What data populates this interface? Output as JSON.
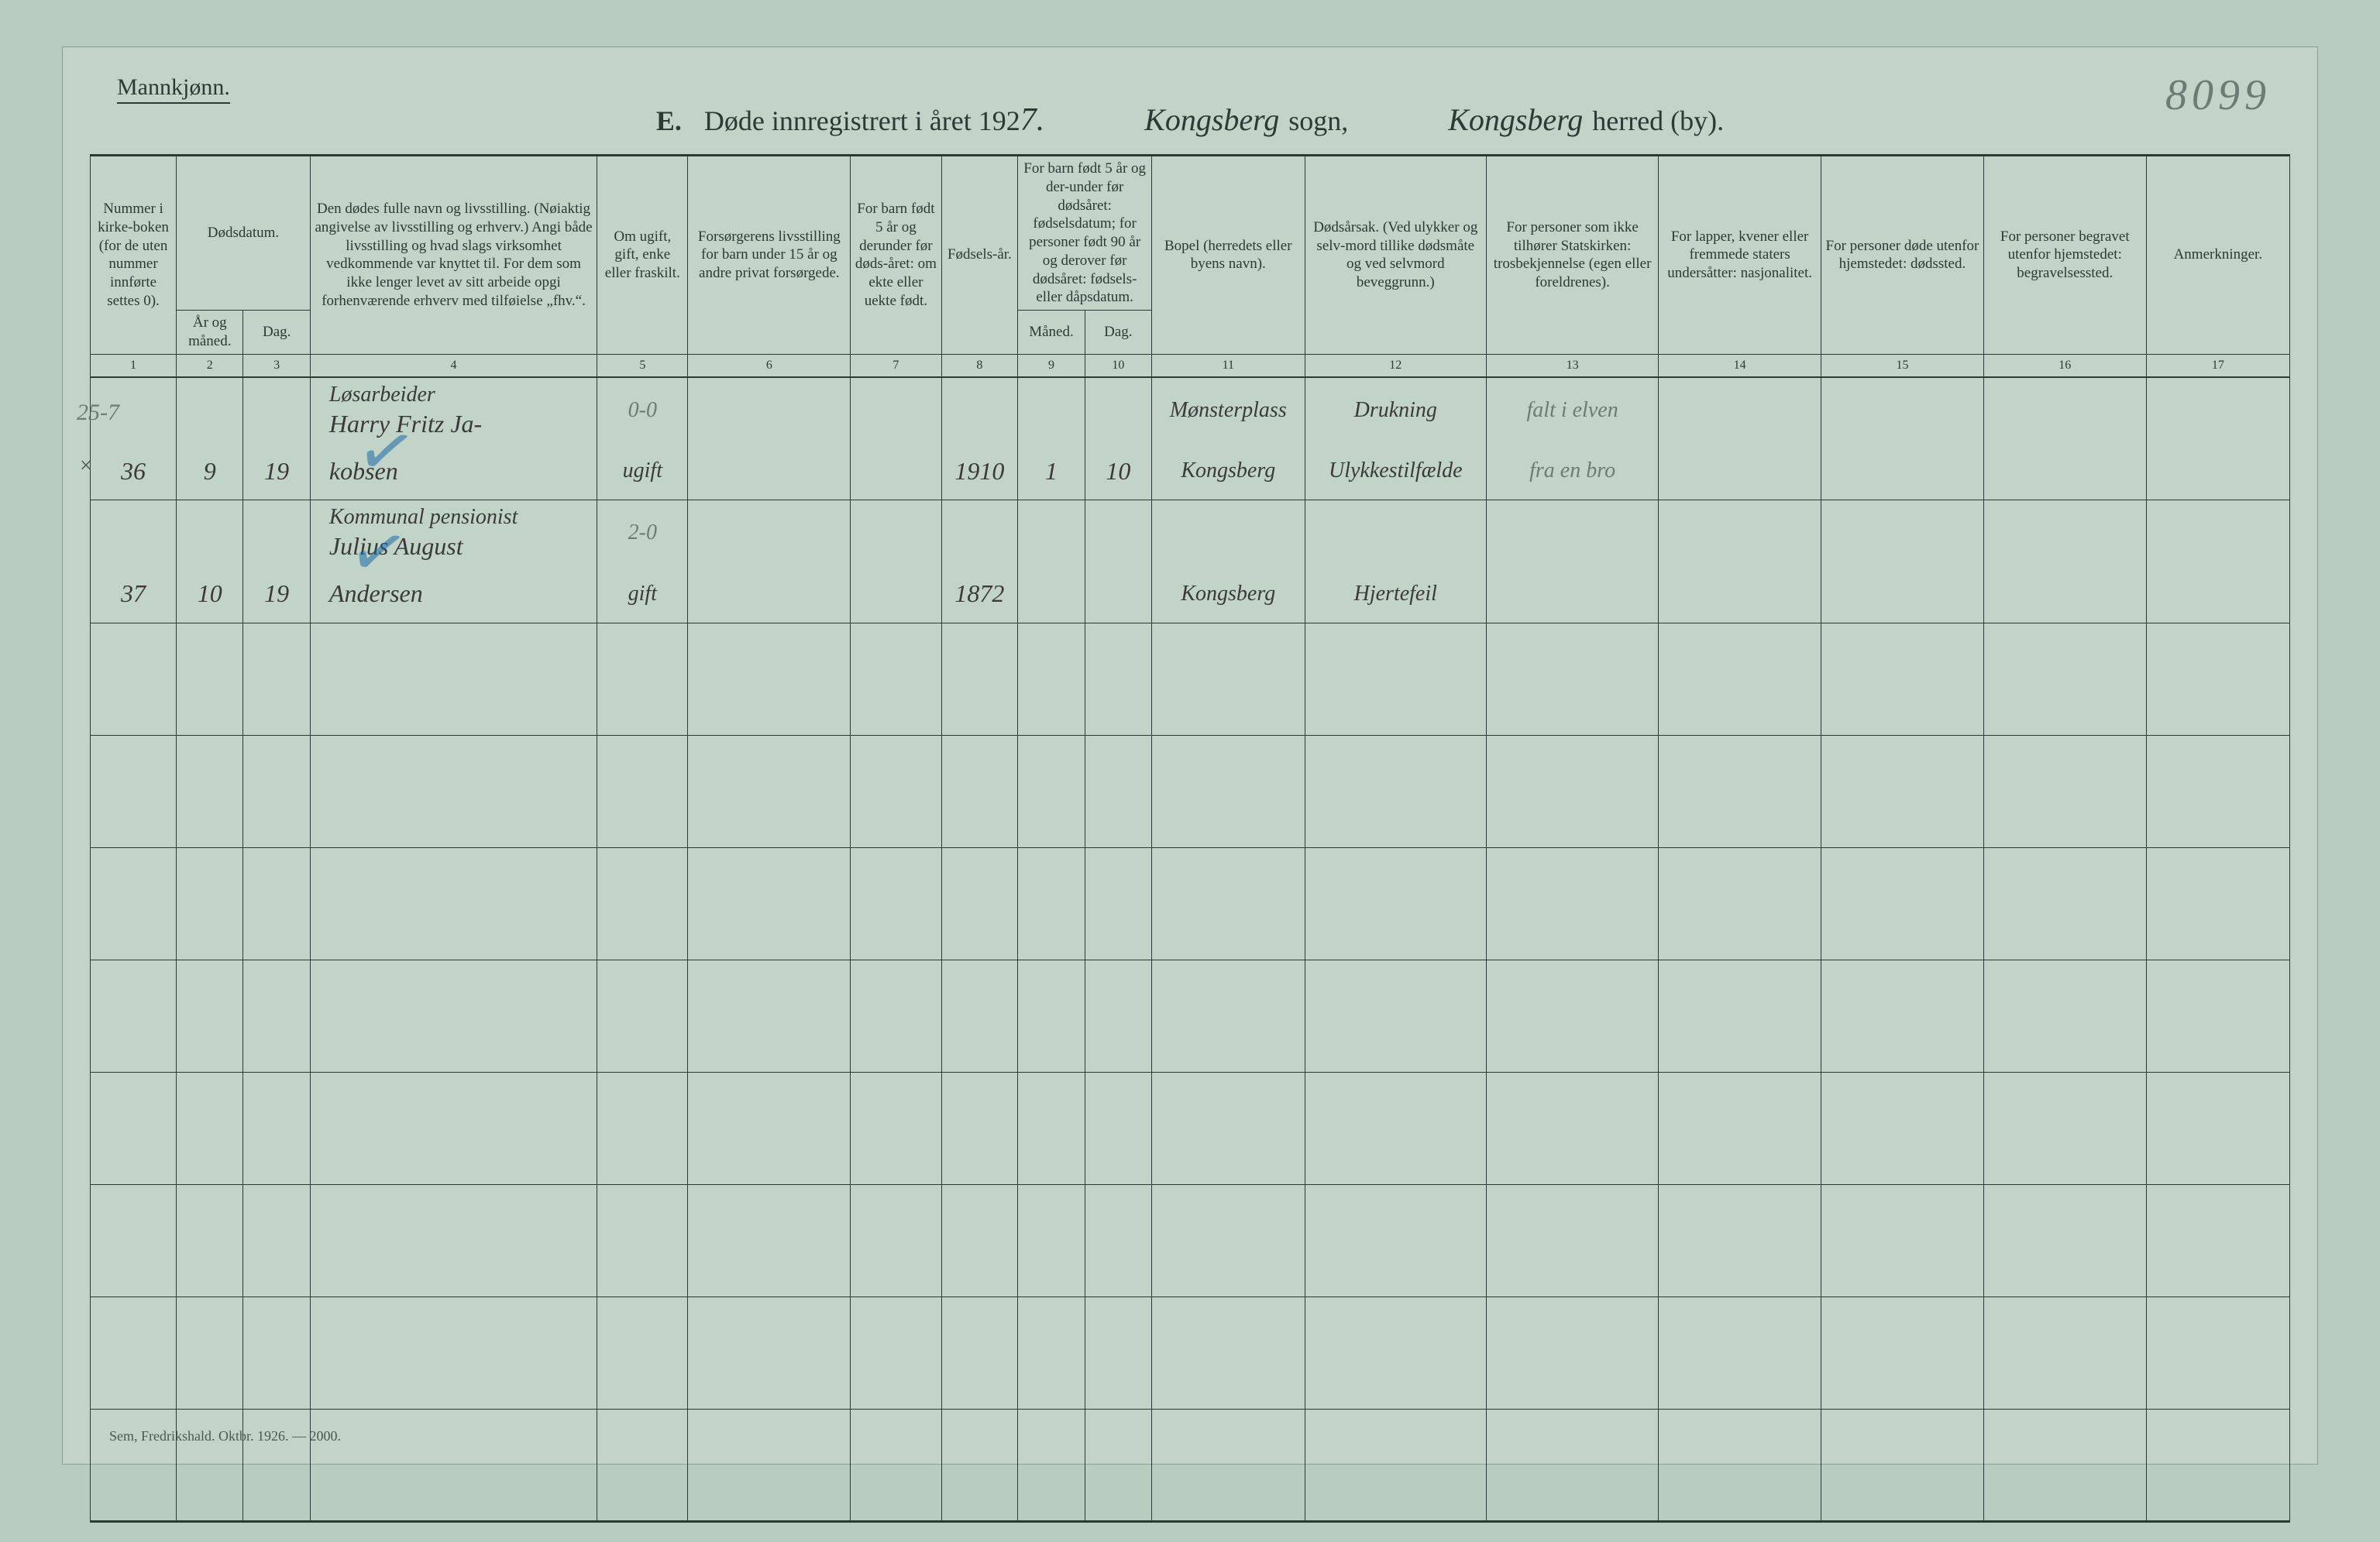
{
  "page_background": "#b8ccbf",
  "paper_background": "#c2d4c8",
  "ink_color": "#2a3a35",
  "handwriting_color": "#3a3a3a",
  "blue_pencil_color": "#1a6aa8",
  "faint_pencil_color": "#6b7c75",
  "gender_label": "Mannkjønn.",
  "title_letter": "E.",
  "title_prefix": "Døde innregistrert i året 192",
  "title_year_hand": "7.",
  "sogn_hand": "Kongsberg",
  "sogn_label": "sogn,",
  "herred_hand": "Kongsberg",
  "herred_label": "herred (by).",
  "page_number_hand": "8099",
  "headers": {
    "c1": "Nummer i kirke-boken (for de uten nummer innførte settes 0).",
    "c2_3_group": "Dødsdatum.",
    "c2": "År og måned.",
    "c3": "Dag.",
    "c4": "Den dødes fulle navn og livsstilling. (Nøiaktig angivelse av livsstilling og erhverv.) Angi både livsstilling og hvad slags virksomhet vedkommende var knyttet til. For dem som ikke lenger levet av sitt arbeide opgi forhenværende erhverv med tilføielse „fhv.“.",
    "c5": "Om ugift, gift, enke eller fraskilt.",
    "c6": "Forsørgerens livsstilling for barn under 15 år og andre privat forsørgede.",
    "c7": "For barn født 5 år og derunder før døds-året: om ekte eller uekte født.",
    "c8": "Fødsels-år.",
    "c9_10_group": "For barn født 5 år og der-under før dødsåret: fødselsdatum; for personer født 90 år og derover før dødsåret: fødsels- eller dåpsdatum.",
    "c9": "Måned.",
    "c10": "Dag.",
    "c11": "Bopel (herredets eller byens navn).",
    "c12": "Dødsårsak. (Ved ulykker og selv-mord tillike dødsmåte og ved selvmord beveggrunn.)",
    "c13": "For personer som ikke tilhører Statskirken: trosbekjennelse (egen eller foreldrenes).",
    "c14": "For lapper, kvener eller fremmede staters undersåtter: nasjonalitet.",
    "c15": "For personer døde utenfor hjemstedet: dødssted.",
    "c16": "For personer begravet utenfor hjemstedet: begravelsessted.",
    "c17": "Anmerkninger."
  },
  "colnums": [
    "1",
    "2",
    "3",
    "4",
    "5",
    "6",
    "7",
    "8",
    "9",
    "10",
    "11",
    "12",
    "13",
    "14",
    "15",
    "16",
    "17"
  ],
  "rows": [
    {
      "num": "36",
      "year_month": "9",
      "day": "19",
      "name_line1": "Løsarbeider",
      "name_line2": "Harry Fritz Ja-",
      "name_line3": "kobsen",
      "code": "0-0",
      "marital": "ugift",
      "provider": "",
      "legit": "",
      "birth_year": "1910",
      "birth_month": "1",
      "birth_day": "10",
      "residence_line1": "Mønsterplass",
      "residence_line2": "Kongsberg",
      "cause_line1": "Drukning",
      "cause_line2": "Ulykkestilfælde",
      "col13_line1": "falt i elven",
      "col13_line2": "fra en bro"
    },
    {
      "num": "37",
      "year_month": "10",
      "day": "19",
      "name_line1": "Kommunal pensionist",
      "name_line2": "Julius August",
      "name_line3": "Andersen",
      "code": "2-0",
      "marital": "gift",
      "provider": "",
      "legit": "",
      "birth_year": "1872",
      "birth_month": "",
      "birth_day": "",
      "residence_line1": "",
      "residence_line2": "Kongsberg",
      "cause_line1": "",
      "cause_line2": "Hjertefeil",
      "col13_line1": "",
      "col13_line2": ""
    }
  ],
  "margin_note": "25-7",
  "margin_x": "×",
  "empty_row_count": 8,
  "footer_imprint": "Sem, Fredrikshald.  Oktbr. 1926. — 2000."
}
